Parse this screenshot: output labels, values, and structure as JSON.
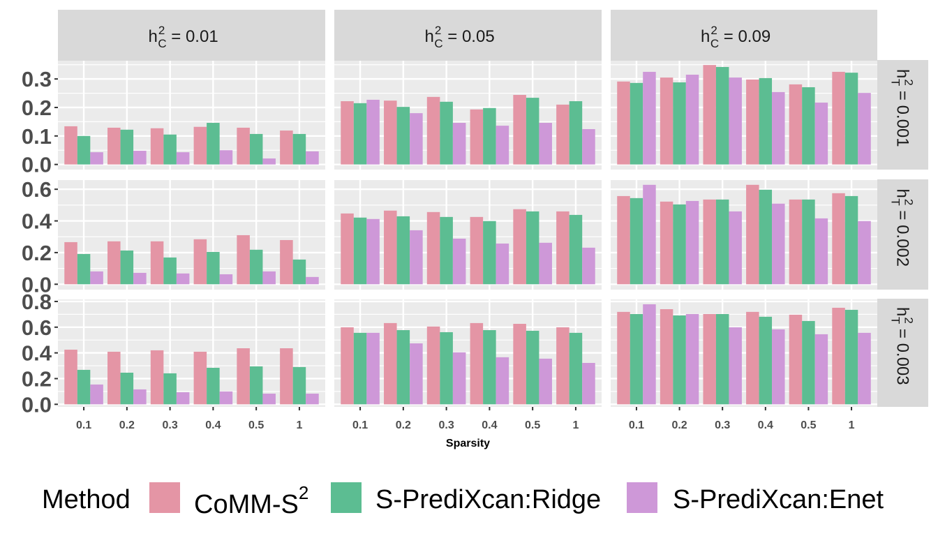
{
  "chart_data": {
    "type": "bar",
    "layout": "facet_grid",
    "xlabel": "Sparsity",
    "ylabel": "",
    "categories": [
      "0.1",
      "0.2",
      "0.3",
      "0.4",
      "0.5",
      "1"
    ],
    "legend": {
      "title": "Method",
      "position": "bottom",
      "entries": [
        {
          "name": "CoMM-S2",
          "base": "CoMM-S",
          "sup": "2",
          "color": "#E495A5"
        },
        {
          "name": "S-PrediXcan:Ridge",
          "base": "S-PrediXcan:Ridge",
          "sup": "",
          "color": "#5CBD92"
        },
        {
          "name": "S-PrediXcan:Enet",
          "base": "S-PrediXcan:Enet",
          "sup": "",
          "color": "#CE98D8"
        }
      ]
    },
    "columns": [
      {
        "label": "h_C^2 = 0.01",
        "var": "h",
        "sup": "2",
        "sub": "C",
        "rest": " = 0.01"
      },
      {
        "label": "h_C^2 = 0.05",
        "var": "h",
        "sup": "2",
        "sub": "C",
        "rest": " = 0.05"
      },
      {
        "label": "h_C^2 = 0.09",
        "var": "h",
        "sup": "2",
        "sub": "C",
        "rest": " = 0.09"
      }
    ],
    "rows": [
      {
        "label": "h_T^2 = 0.001",
        "var": "h",
        "sup": "2",
        "sub": "T",
        "rest": " = 0.001",
        "ylim": [
          -0.018,
          0.364
        ],
        "yticks": [
          0.0,
          0.1,
          0.2,
          0.3
        ],
        "ytick_labels": [
          "0.0",
          "0.1",
          "0.2",
          "0.3"
        ],
        "minor": [
          0.05,
          0.15,
          0.25,
          0.35
        ]
      },
      {
        "label": "h_T^2 = 0.002",
        "var": "h",
        "sup": "2",
        "sub": "T",
        "rest": " = 0.002",
        "ylim": [
          -0.034,
          0.658
        ],
        "yticks": [
          0.0,
          0.2,
          0.4,
          0.6
        ],
        "ytick_labels": [
          "0.0",
          "0.2",
          "0.4",
          "0.6"
        ],
        "minor": [
          0.1,
          0.3,
          0.5
        ]
      },
      {
        "label": "h_T^2 = 0.003",
        "var": "h",
        "sup": "2",
        "sub": "T",
        "rest": " = 0.003",
        "ylim": [
          -0.02,
          0.816
        ],
        "yticks": [
          0.0,
          0.2,
          0.4,
          0.6,
          0.8
        ],
        "ytick_labels": [
          "0.0",
          "0.2",
          "0.4",
          "0.6",
          "0.8"
        ],
        "minor": [
          0.1,
          0.3,
          0.5,
          0.7
        ]
      }
    ],
    "panels": [
      [
        {
          "series": [
            {
              "name": "CoMM-S2",
              "values": [
                0.134,
                0.129,
                0.127,
                0.132,
                0.129,
                0.119
              ]
            },
            {
              "name": "S-PrediXcan:Ridge",
              "values": [
                0.1,
                0.122,
                0.105,
                0.146,
                0.107,
                0.107
              ]
            },
            {
              "name": "S-PrediXcan:Enet",
              "values": [
                0.043,
                0.048,
                0.043,
                0.05,
                0.021,
                0.046
              ]
            }
          ]
        },
        {
          "series": [
            {
              "name": "CoMM-S2",
              "values": [
                0.222,
                0.224,
                0.237,
                0.193,
                0.244,
                0.21
              ]
            },
            {
              "name": "S-PrediXcan:Ridge",
              "values": [
                0.215,
                0.202,
                0.22,
                0.198,
                0.234,
                0.222
              ]
            },
            {
              "name": "S-PrediXcan:Enet",
              "values": [
                0.227,
                0.18,
                0.146,
                0.136,
                0.146,
                0.124
              ]
            }
          ]
        },
        {
          "series": [
            {
              "name": "CoMM-S2",
              "values": [
                0.291,
                0.305,
                0.349,
                0.298,
                0.281,
                0.325
              ]
            },
            {
              "name": "S-PrediXcan:Ridge",
              "values": [
                0.286,
                0.288,
                0.342,
                0.303,
                0.271,
                0.322
              ]
            },
            {
              "name": "S-PrediXcan:Enet",
              "values": [
                0.325,
                0.315,
                0.305,
                0.254,
                0.217,
                0.251
              ]
            }
          ]
        }
      ],
      [
        {
          "series": [
            {
              "name": "CoMM-S2",
              "values": [
                0.266,
                0.271,
                0.271,
                0.284,
                0.31,
                0.279
              ]
            },
            {
              "name": "S-PrediXcan:Ridge",
              "values": [
                0.191,
                0.213,
                0.169,
                0.204,
                0.218,
                0.156
              ]
            },
            {
              "name": "S-PrediXcan:Enet",
              "values": [
                0.081,
                0.072,
                0.068,
                0.063,
                0.081,
                0.046
              ]
            }
          ]
        },
        {
          "series": [
            {
              "name": "CoMM-S2",
              "values": [
                0.447,
                0.465,
                0.456,
                0.425,
                0.474,
                0.46
              ]
            },
            {
              "name": "S-PrediXcan:Ridge",
              "values": [
                0.421,
                0.429,
                0.425,
                0.399,
                0.46,
                0.438
              ]
            },
            {
              "name": "S-PrediXcan:Enet",
              "values": [
                0.412,
                0.341,
                0.288,
                0.257,
                0.262,
                0.231
              ]
            }
          ]
        },
        {
          "series": [
            {
              "name": "CoMM-S2",
              "values": [
                0.557,
                0.522,
                0.535,
                0.628,
                0.535,
                0.575
              ]
            },
            {
              "name": "S-PrediXcan:Ridge",
              "values": [
                0.544,
                0.504,
                0.535,
                0.597,
                0.535,
                0.557
              ]
            },
            {
              "name": "S-PrediXcan:Enet",
              "values": [
                0.628,
                0.526,
                0.46,
                0.509,
                0.416,
                0.399
              ]
            }
          ]
        }
      ],
      [
        {
          "series": [
            {
              "name": "CoMM-S2",
              "values": [
                0.425,
                0.409,
                0.42,
                0.409,
                0.436,
                0.436
              ]
            },
            {
              "name": "S-PrediXcan:Ridge",
              "values": [
                0.268,
                0.246,
                0.241,
                0.284,
                0.295,
                0.29
              ]
            },
            {
              "name": "S-PrediXcan:Enet",
              "values": [
                0.154,
                0.116,
                0.094,
                0.1,
                0.083,
                0.083
              ]
            }
          ]
        },
        {
          "series": [
            {
              "name": "CoMM-S2",
              "values": [
                0.599,
                0.632,
                0.605,
                0.632,
                0.626,
                0.599
              ]
            },
            {
              "name": "S-PrediXcan:Ridge",
              "values": [
                0.556,
                0.577,
                0.561,
                0.577,
                0.572,
                0.556
              ]
            },
            {
              "name": "S-PrediXcan:Enet",
              "values": [
                0.556,
                0.474,
                0.404,
                0.366,
                0.355,
                0.322
              ]
            }
          ]
        },
        {
          "series": [
            {
              "name": "CoMM-S2",
              "values": [
                0.719,
                0.74,
                0.702,
                0.719,
                0.697,
                0.751
              ]
            },
            {
              "name": "S-PrediXcan:Ridge",
              "values": [
                0.702,
                0.691,
                0.702,
                0.681,
                0.648,
                0.735
              ]
            },
            {
              "name": "S-PrediXcan:Enet",
              "values": [
                0.778,
                0.702,
                0.599,
                0.583,
                0.545,
                0.556
              ]
            }
          ]
        }
      ]
    ],
    "grid": true,
    "panel_background": "#EBEBEB",
    "strip_background": "#D9D9D9"
  }
}
